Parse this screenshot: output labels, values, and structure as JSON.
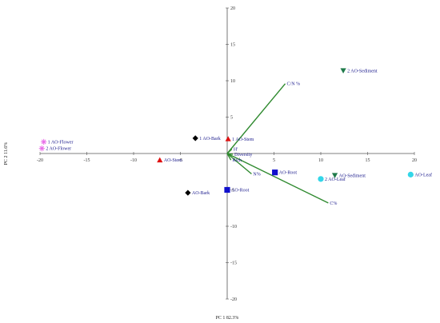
{
  "chart_data": {
    "type": "scatter",
    "xlabel": "PC 1  82.3%",
    "ylabel": "PC 2  11.6%",
    "xlim": [
      -20,
      20
    ],
    "ylim": [
      -20,
      20
    ],
    "x_ticks": [
      -20,
      -15,
      -10,
      -5,
      5,
      10,
      15,
      20
    ],
    "y_ticks": [
      -20,
      -15,
      -10,
      -5,
      5,
      10,
      15,
      20
    ],
    "grid": false,
    "colors": {
      "flower": "#e86ce8",
      "bark": "#000000",
      "stem": "#e01010",
      "root": "#1010cc",
      "leaf": "#33d6e8",
      "sediment": "#1f7a4a",
      "vector": "#2f8a2f"
    },
    "points": [
      {
        "label": "1 AO-Flower",
        "x": -19.6,
        "y": 1.6,
        "group": "flower",
        "marker": "star"
      },
      {
        "label": "2 AO-Flower",
        "x": -19.8,
        "y": 0.7,
        "group": "flower",
        "marker": "star"
      },
      {
        "label": "1 AO-Bark",
        "x": -3.4,
        "y": 2.1,
        "group": "bark",
        "marker": "diamond"
      },
      {
        "label": "AO-Bark",
        "x": -4.2,
        "y": -5.4,
        "group": "bark",
        "marker": "diamond"
      },
      {
        "label": "1 AO-Stem",
        "x": 0.1,
        "y": 2.0,
        "group": "stem",
        "marker": "triangle"
      },
      {
        "label": "AO-Stem",
        "x": -7.2,
        "y": -0.9,
        "group": "stem",
        "marker": "triangle"
      },
      {
        "label": "AO-Root",
        "x": 5.1,
        "y": -2.6,
        "group": "root",
        "marker": "square"
      },
      {
        "label": "AO-Root",
        "x": 0.0,
        "y": -5.0,
        "group": "root",
        "marker": "square"
      },
      {
        "label": "2 AO-Leaf",
        "x": 10.0,
        "y": -3.5,
        "group": "leaf",
        "marker": "circle"
      },
      {
        "label": "AO-Leaf",
        "x": 19.6,
        "y": -2.9,
        "group": "leaf",
        "marker": "circle"
      },
      {
        "label": "2 AO-Sediment",
        "x": 12.4,
        "y": 11.4,
        "group": "sediment",
        "marker": "triangle-down"
      },
      {
        "label": "AO-Sediment",
        "x": 11.5,
        "y": -3.0,
        "group": "sediment",
        "marker": "triangle-down"
      }
    ],
    "vectors": [
      {
        "label": "C/N %",
        "x": 6.2,
        "y": 9.6
      },
      {
        "label": "C%",
        "x": 10.8,
        "y": -6.8
      },
      {
        "label": "N%",
        "x": 2.6,
        "y": -2.8
      },
      {
        "label": "H'",
        "x": 0.5,
        "y": 0.6
      },
      {
        "label": "Diversity",
        "x": 0.6,
        "y": -0.1
      },
      {
        "label": "Rich",
        "x": 0.4,
        "y": -0.9
      }
    ]
  }
}
